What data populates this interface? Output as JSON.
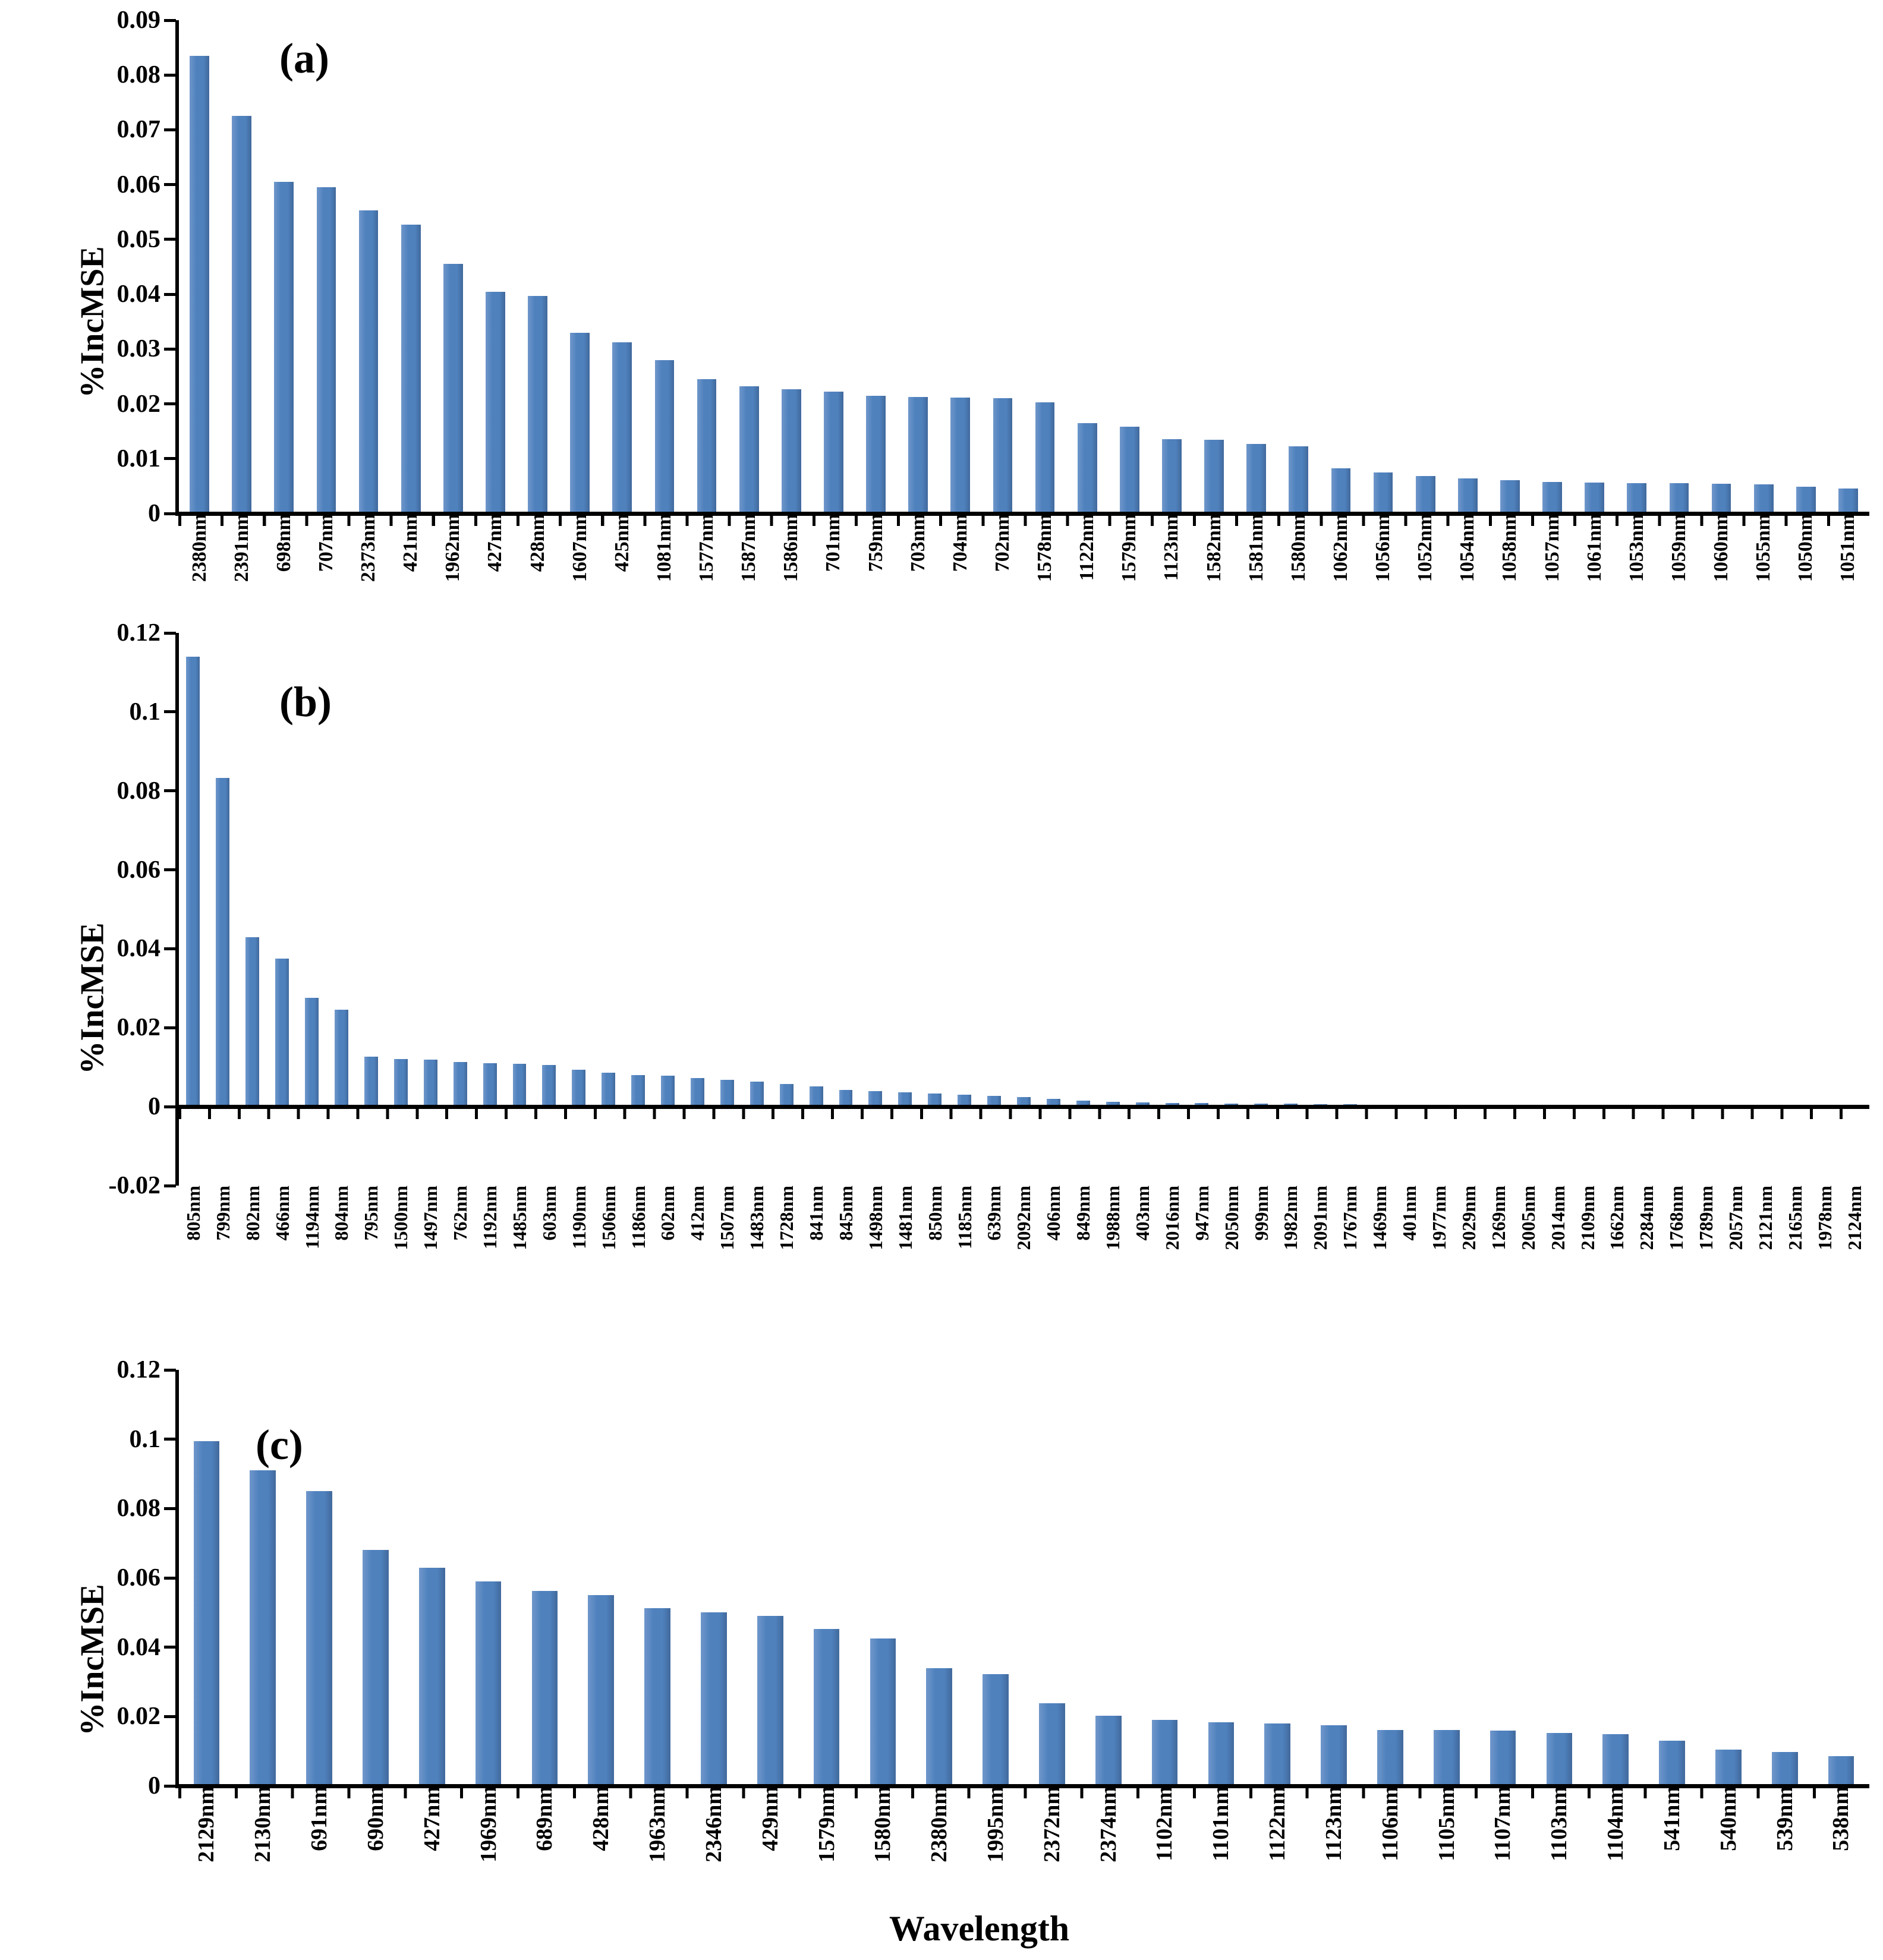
{
  "figure": {
    "xaxis_title": "Wavelength",
    "bar_color": "#4f81bd",
    "axis_color": "#000000"
  },
  "chart_data": [
    {
      "type": "bar",
      "panel_label": "(a)",
      "ylabel": "%IncMSE",
      "xlabel": "",
      "ylim": [
        0,
        0.09
      ],
      "grid": false,
      "legend": "none",
      "yticks": [
        {
          "v": 0,
          "t": "0"
        },
        {
          "v": 0.01,
          "t": "0.01"
        },
        {
          "v": 0.02,
          "t": "0.02"
        },
        {
          "v": 0.03,
          "t": "0.03"
        },
        {
          "v": 0.04,
          "t": "0.04"
        },
        {
          "v": 0.05,
          "t": "0.05"
        },
        {
          "v": 0.06,
          "t": "0.06"
        },
        {
          "v": 0.07,
          "t": "0.07"
        },
        {
          "v": 0.08,
          "t": "0.08"
        },
        {
          "v": 0.09,
          "t": "0.09"
        }
      ],
      "categories": [
        "2380nm",
        "2391nm",
        "698nm",
        "707nm",
        "2373nm",
        "421nm",
        "1962nm",
        "427nm",
        "428nm",
        "1607nm",
        "425nm",
        "1081nm",
        "1577nm",
        "1587nm",
        "1586nm",
        "701nm",
        "759nm",
        "703nm",
        "704nm",
        "702nm",
        "1578nm",
        "1122nm",
        "1579nm",
        "1123nm",
        "1582nm",
        "1581nm",
        "1580nm",
        "1062nm",
        "1056nm",
        "1052nm",
        "1054nm",
        "1058nm",
        "1057nm",
        "1061nm",
        "1053nm",
        "1059nm",
        "1060nm",
        "1055nm",
        "1050nm",
        "1051nm"
      ],
      "values": [
        0.0835,
        0.0725,
        0.0605,
        0.0595,
        0.0553,
        0.0527,
        0.0455,
        0.0405,
        0.0397,
        0.033,
        0.0312,
        0.028,
        0.0245,
        0.0232,
        0.0227,
        0.0222,
        0.0215,
        0.0213,
        0.0211,
        0.021,
        0.0203,
        0.0165,
        0.0158,
        0.0136,
        0.0135,
        0.0127,
        0.0122,
        0.0082,
        0.0075,
        0.0068,
        0.0064,
        0.0061,
        0.0057,
        0.0056,
        0.0055,
        0.0055,
        0.0054,
        0.0053,
        0.0049,
        0.0046
      ]
    },
    {
      "type": "bar",
      "panel_label": "(b)",
      "ylabel": "%IncMSE",
      "xlabel": "",
      "ylim": [
        -0.02,
        0.12
      ],
      "grid": false,
      "legend": "none",
      "yticks": [
        {
          "v": -0.02,
          "t": "-0.02"
        },
        {
          "v": 0,
          "t": "0"
        },
        {
          "v": 0.02,
          "t": "0.02"
        },
        {
          "v": 0.04,
          "t": "0.04"
        },
        {
          "v": 0.06,
          "t": "0.06"
        },
        {
          "v": 0.08,
          "t": "0.08"
        },
        {
          "v": 0.1,
          "t": "0.1"
        },
        {
          "v": 0.12,
          "t": "0.12"
        }
      ],
      "categories": [
        "805nm",
        "799nm",
        "802nm",
        "466nm",
        "1194nm",
        "804nm",
        "795nm",
        "1500nm",
        "1497nm",
        "762nm",
        "1192nm",
        "1485nm",
        "603nm",
        "1190nm",
        "1506nm",
        "1186nm",
        "602nm",
        "412nm",
        "1507nm",
        "1483nm",
        "1728nm",
        "841nm",
        "845nm",
        "1498nm",
        "1481nm",
        "850nm",
        "1185nm",
        "639nm",
        "2092nm",
        "406nm",
        "849nm",
        "1988nm",
        "403nm",
        "2016nm",
        "947nm",
        "2050nm",
        "999nm",
        "1982nm",
        "2091nm",
        "1767nm",
        "1469nm",
        "401nm",
        "1977nm",
        "2029nm",
        "1269nm",
        "2005nm",
        "2014nm",
        "2109nm",
        "1662nm",
        "2284nm",
        "1768nm",
        "1789nm",
        "2057nm",
        "2121nm",
        "2165nm",
        "1978nm",
        "2124nm"
      ],
      "values": [
        0.114,
        0.0832,
        0.043,
        0.0375,
        0.0275,
        0.0246,
        0.0127,
        0.0121,
        0.0119,
        0.0113,
        0.011,
        0.0108,
        0.0105,
        0.0094,
        0.0086,
        0.008,
        0.0078,
        0.0072,
        0.0068,
        0.0063,
        0.0057,
        0.0052,
        0.0043,
        0.004,
        0.0036,
        0.0033,
        0.0031,
        0.0028,
        0.0025,
        0.002,
        0.0016,
        0.0013,
        0.0011,
        0.001,
        0.0009,
        0.0008,
        0.0007,
        0.0007,
        0.0006,
        0.0006,
        0.0005,
        0.0004,
        0.0003,
        0.0002,
        0.0002,
        0.0001,
        0.0001,
        0.0001,
        0.0001,
        0,
        0,
        0,
        0,
        0,
        0,
        0,
        0
      ]
    },
    {
      "type": "bar",
      "panel_label": "(c)",
      "ylabel": "%IncMSE",
      "xlabel": "Wavelength",
      "ylim": [
        0,
        0.12
      ],
      "grid": false,
      "legend": "none",
      "yticks": [
        {
          "v": 0,
          "t": "0"
        },
        {
          "v": 0.02,
          "t": "0.02"
        },
        {
          "v": 0.04,
          "t": "0.04"
        },
        {
          "v": 0.06,
          "t": "0.06"
        },
        {
          "v": 0.08,
          "t": "0.08"
        },
        {
          "v": 0.1,
          "t": "0.1"
        },
        {
          "v": 0.12,
          "t": "0.12"
        }
      ],
      "categories": [
        "2129nm",
        "2130nm",
        "691nm",
        "690nm",
        "427nm",
        "1969nm",
        "689nm",
        "428nm",
        "1963nm",
        "2346nm",
        "429nm",
        "1579nm",
        "1580nm",
        "2380nm",
        "1995nm",
        "2372nm",
        "2374nm",
        "1102nm",
        "1101nm",
        "1122nm",
        "1123nm",
        "1106nm",
        "1105nm",
        "1107nm",
        "1103nm",
        "1104nm",
        "541nm",
        "540nm",
        "539nm",
        "538nm"
      ],
      "values": [
        0.0995,
        0.091,
        0.085,
        0.068,
        0.063,
        0.059,
        0.0562,
        0.055,
        0.0512,
        0.05,
        0.049,
        0.0452,
        0.0425,
        0.034,
        0.0322,
        0.0238,
        0.0202,
        0.019,
        0.0183,
        0.018,
        0.0175,
        0.0162,
        0.0162,
        0.016,
        0.0153,
        0.015,
        0.013,
        0.0105,
        0.0098,
        0.0085
      ]
    }
  ]
}
